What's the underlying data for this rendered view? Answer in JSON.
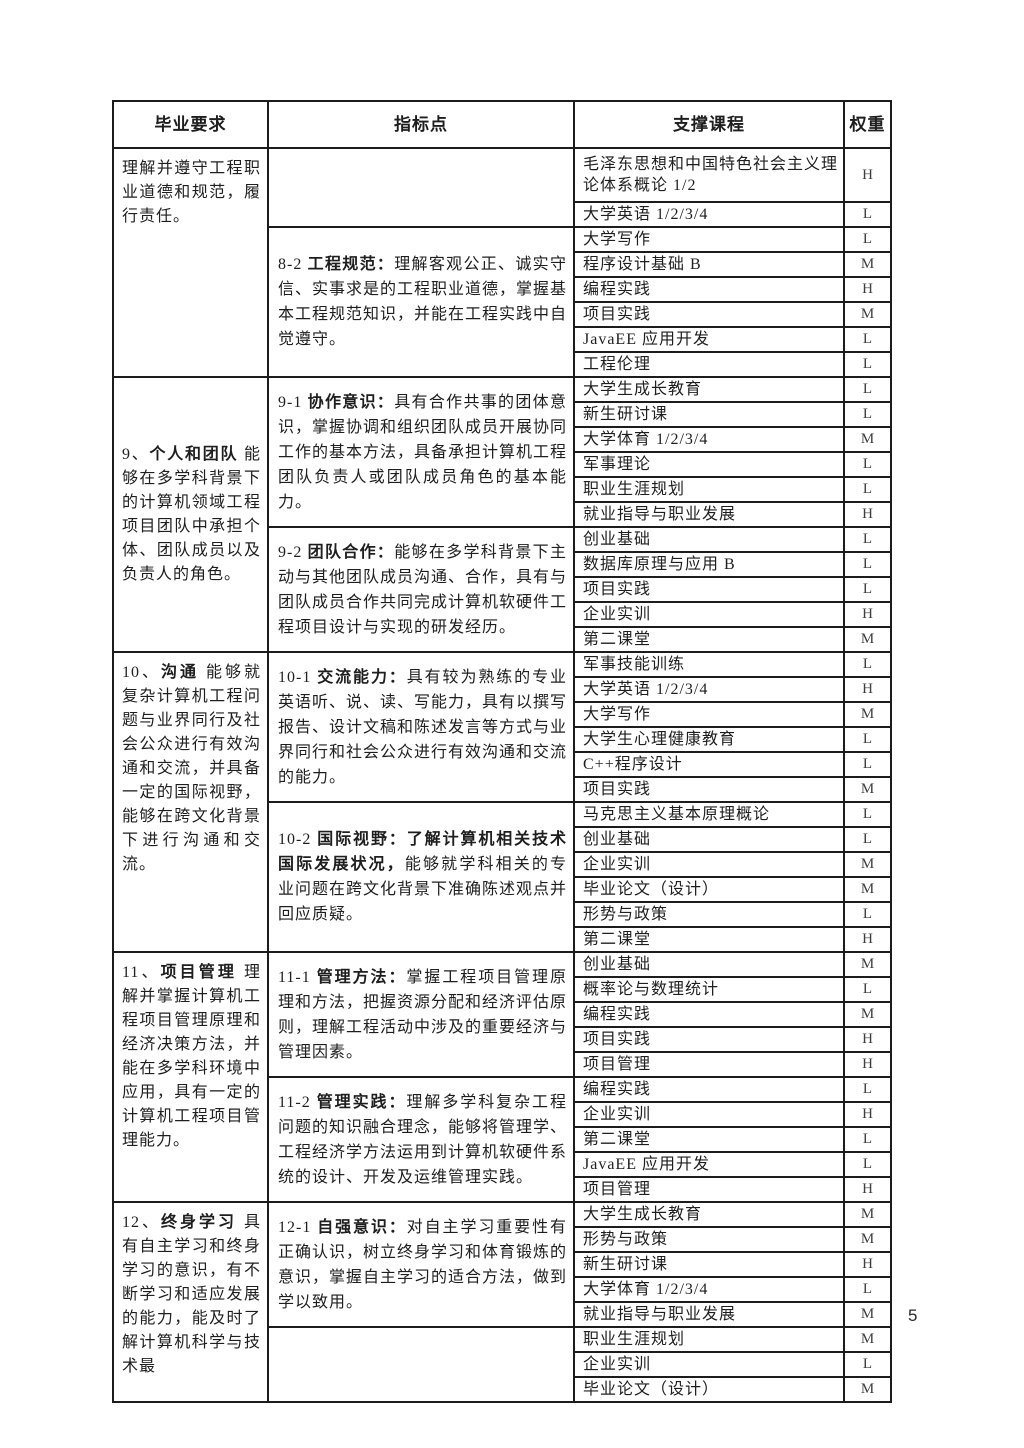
{
  "page": {
    "number": "5"
  },
  "table": {
    "headers": [
      "毕业要求",
      "指标点",
      "支撑课程",
      "权重"
    ],
    "sections": [
      {
        "requirement": {
          "num": "",
          "title": "",
          "desc": "理解并遵守工程职业道德和规范，履行责任。"
        },
        "indicators": [
          {
            "num": "",
            "name": "",
            "desc": "",
            "courses": [
              {
                "name": "毛泽东思想和中国特色社会主义理论体系概论 1/2",
                "weight": "H"
              },
              {
                "name": "大学英语 1/2/3/4",
                "weight": "L"
              }
            ]
          },
          {
            "num": "8-2 ",
            "name": "工程规范：",
            "desc": "理解客观公正、诚实守信、实事求是的工程职业道德，掌握基本工程规范知识，并能在工程实践中自觉遵守。",
            "courses": [
              {
                "name": "大学写作",
                "weight": "L"
              },
              {
                "name": "程序设计基础 B",
                "weight": "M"
              },
              {
                "name": "编程实践",
                "weight": "H"
              },
              {
                "name": "项目实践",
                "weight": "M"
              },
              {
                "name": "JavaEE 应用开发",
                "weight": "L"
              },
              {
                "name": "工程伦理",
                "weight": "L"
              }
            ]
          }
        ]
      },
      {
        "requirement": {
          "num": "9、",
          "title": "个人和团队",
          "desc": "能够在多学科背景下的计算机领域工程项目团队中承担个体、团队成员以及负责人的角色。"
        },
        "indicators": [
          {
            "num": "9-1 ",
            "name": "协作意识：",
            "desc": "具有合作共事的团体意识，掌握协调和组织团队成员开展协同工作的基本方法，具备承担计算机工程团队负责人或团队成员角色的基本能力。",
            "courses": [
              {
                "name": "大学生成长教育",
                "weight": "L"
              },
              {
                "name": "新生研讨课",
                "weight": "L"
              },
              {
                "name": "大学体育 1/2/3/4",
                "weight": "M"
              },
              {
                "name": "军事理论",
                "weight": "L"
              },
              {
                "name": "职业生涯规划",
                "weight": "L"
              },
              {
                "name": "就业指导与职业发展",
                "weight": "H"
              }
            ]
          },
          {
            "num": "9-2 ",
            "name": "团队合作：",
            "desc": "能够在多学科背景下主动与其他团队成员沟通、合作，具有与团队成员合作共同完成计算机软硬件工程项目设计与实现的研发经历。",
            "courses": [
              {
                "name": "创业基础",
                "weight": "L"
              },
              {
                "name": "数据库原理与应用 B",
                "weight": "L"
              },
              {
                "name": "项目实践",
                "weight": "L"
              },
              {
                "name": "企业实训",
                "weight": "H"
              },
              {
                "name": "第二课堂",
                "weight": "M"
              }
            ]
          }
        ]
      },
      {
        "requirement": {
          "num": "10、",
          "title": "沟通",
          "desc": "能够就复杂计算机工程问题与业界同行及社会公众进行有效沟通和交流，并具备一定的国际视野，能够在跨文化背景下进行沟通和交流。"
        },
        "indicators": [
          {
            "num": "10-1 ",
            "name": "交流能力：",
            "desc": "具有较为熟练的专业英语听、说、读、写能力，具有以撰写报告、设计文稿和陈述发言等方式与业界同行和社会公众进行有效沟通和交流的能力。",
            "courses": [
              {
                "name": "军事技能训练",
                "weight": "L"
              },
              {
                "name": "大学英语 1/2/3/4",
                "weight": "H"
              },
              {
                "name": "大学写作",
                "weight": "M"
              },
              {
                "name": "大学生心理健康教育",
                "weight": "L"
              },
              {
                "name": "C++程序设计",
                "weight": "L"
              },
              {
                "name": "项目实践",
                "weight": "M"
              }
            ]
          },
          {
            "num": "10-2 ",
            "name": "国际视野：了解计算机相关技术国际发展状况，",
            "desc": "能够就学科相关的专业问题在跨文化背景下准确陈述观点并回应质疑。",
            "courses": [
              {
                "name": "马克思主义基本原理概论",
                "weight": "L"
              },
              {
                "name": "创业基础",
                "weight": "L"
              },
              {
                "name": "企业实训",
                "weight": "M"
              },
              {
                "name": "毕业论文（设计）",
                "weight": "M"
              },
              {
                "name": "形势与政策",
                "weight": "L"
              },
              {
                "name": "第二课堂",
                "weight": "H"
              }
            ]
          }
        ]
      },
      {
        "requirement": {
          "num": "11、",
          "title": "项目管理",
          "desc": "理解并掌握计算机工程项目管理原理和经济决策方法，并能在多学科环境中应用，具有一定的计算机工程项目管理能力。"
        },
        "indicators": [
          {
            "num": "11-1 ",
            "name": "管理方法：",
            "desc": "掌握工程项目管理原理和方法，把握资源分配和经济评估原则，理解工程活动中涉及的重要经济与管理因素。",
            "courses": [
              {
                "name": "创业基础",
                "weight": "M"
              },
              {
                "name": "概率论与数理统计",
                "weight": "L"
              },
              {
                "name": "编程实践",
                "weight": "M"
              },
              {
                "name": "项目实践",
                "weight": "H"
              },
              {
                "name": "项目管理",
                "weight": "H"
              }
            ]
          },
          {
            "num": "11-2 ",
            "name": "管理实践：",
            "desc": "理解多学科复杂工程问题的知识融合理念，能够将管理学、工程经济学方法运用到计算机软硬件系统的设计、开发及运维管理实践。",
            "courses": [
              {
                "name": "编程实践",
                "weight": "L"
              },
              {
                "name": "企业实训",
                "weight": "H"
              },
              {
                "name": "第二课堂",
                "weight": "L"
              },
              {
                "name": "JavaEE 应用开发",
                "weight": "L"
              },
              {
                "name": "项目管理",
                "weight": "H"
              }
            ]
          }
        ]
      },
      {
        "requirement": {
          "num": "12、",
          "title": "终身学习",
          "desc": "具有自主学习和终身学习的意识，有不断学习和适应发展的能力，能及时了解计算机科学与技术最"
        },
        "indicators": [
          {
            "num": "12-1 ",
            "name": "自强意识：",
            "desc": "对自主学习重要性有正确认识，树立终身学习和体育锻炼的意识，掌握自主学习的适合方法，做到学以致用。",
            "courses": [
              {
                "name": "大学生成长教育",
                "weight": "M"
              },
              {
                "name": "形势与政策",
                "weight": "M"
              },
              {
                "name": "新生研讨课",
                "weight": "H"
              },
              {
                "name": "大学体育 1/2/3/4",
                "weight": "L"
              },
              {
                "name": "就业指导与职业发展",
                "weight": "M"
              }
            ]
          },
          {
            "num": "",
            "name": "",
            "desc": "",
            "courses": [
              {
                "name": "职业生涯规划",
                "weight": "M"
              },
              {
                "name": "企业实训",
                "weight": "L"
              },
              {
                "name": "毕业论文（设计）",
                "weight": "M"
              }
            ]
          }
        ]
      }
    ]
  }
}
